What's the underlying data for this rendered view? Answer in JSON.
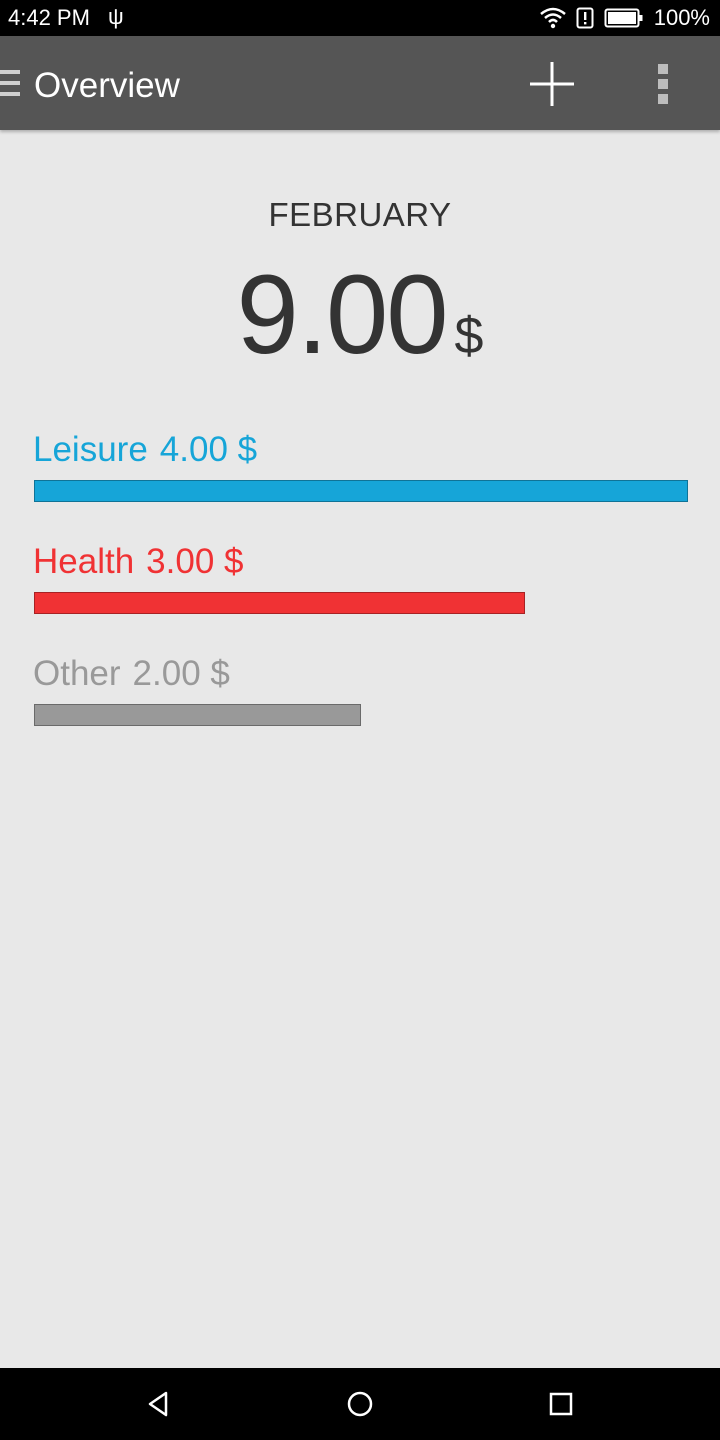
{
  "status_bar": {
    "time": "4:42 PM",
    "battery": "100%",
    "icons": [
      "usb-icon",
      "wifi-icon",
      "alert-icon",
      "battery-icon"
    ]
  },
  "app_bar": {
    "title": "Overview",
    "icons": [
      "menu-icon",
      "add-icon",
      "overflow-icon"
    ]
  },
  "summary": {
    "month": "FEBRUARY",
    "total": "9.00",
    "currency": "$"
  },
  "categories": [
    {
      "name": "Leisure",
      "amount": "4.00 $",
      "share": 1.0,
      "color": "#16a5d8"
    },
    {
      "name": "Health",
      "amount": "3.00 $",
      "share": 0.75,
      "color": "#f03234"
    },
    {
      "name": "Other",
      "amount": "2.00 $",
      "share": 0.5,
      "color": "#999999"
    }
  ],
  "nav_bar": {
    "icons": [
      "back-icon",
      "home-icon",
      "recents-icon"
    ]
  }
}
